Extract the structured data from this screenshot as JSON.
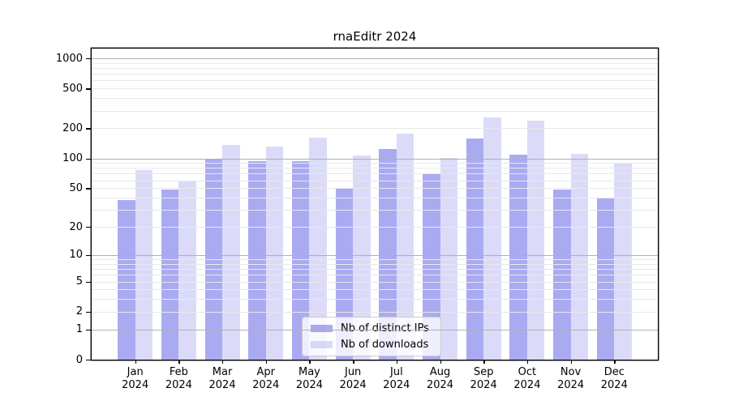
{
  "chart_data": {
    "type": "bar",
    "title": "rnaEditr 2024",
    "categories": [
      "Jan",
      "Feb",
      "Mar",
      "Apr",
      "May",
      "Jun",
      "Jul",
      "Aug",
      "Sep",
      "Oct",
      "Nov",
      "Dec"
    ],
    "year": "2024",
    "series": [
      {
        "name": "Nb of distinct IPs",
        "color": "rgba(113,113,233,0.6)",
        "values": [
          38,
          48,
          100,
          94,
          94,
          50,
          125,
          69,
          159,
          109,
          48,
          39
        ]
      },
      {
        "name": "Nb of downloads",
        "color": "rgba(113,113,233,0.25)",
        "values": [
          76,
          60,
          136,
          131,
          161,
          106,
          176,
          101,
          257,
          238,
          111,
          88
        ]
      }
    ],
    "y_scale": "log10(value+1)",
    "y_ticks": [
      0,
      1,
      2,
      5,
      10,
      20,
      50,
      100,
      200,
      500,
      1000
    ],
    "y_major_gridlines": [
      1,
      10,
      100,
      1000
    ],
    "y_minor_gridlines": [
      2,
      3,
      4,
      5,
      6,
      7,
      8,
      9,
      20,
      30,
      40,
      50,
      60,
      70,
      80,
      90,
      200,
      300,
      400,
      500,
      600,
      700,
      800,
      900
    ],
    "ylim": [
      0,
      1250
    ],
    "xlabel": "",
    "ylabel": "",
    "grid": true,
    "legend_position": "lower center"
  },
  "colors": {
    "bar_base": "#7171e9",
    "grid_major": "#b0b0b0",
    "grid_minor": "#e8e8e8",
    "axis": "#000000",
    "legend_border": "#cccccc",
    "background": "#ffffff"
  }
}
